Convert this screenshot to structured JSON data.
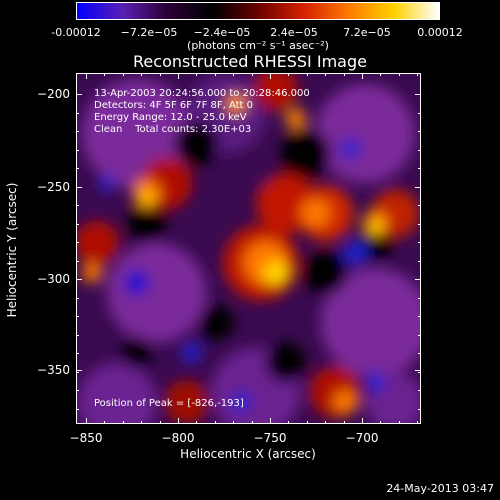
{
  "colorbar": {
    "ticks": [
      "-0.00012",
      "−7.2e−05",
      "−2.4e−05",
      "2.4e−05",
      "7.2e−05",
      "0.00012"
    ],
    "units": "(photons cm⁻² s⁻¹ asec⁻²)",
    "colors": [
      "#0000ff",
      "#5a1fb5",
      "#2a0035",
      "#000000",
      "#6a0000",
      "#d42000",
      "#ff7a00",
      "#ffd000",
      "#ffffff"
    ]
  },
  "title": "Reconstructed RHESSI Image",
  "info": {
    "line1": "13-Apr-2003 20:24:56.000 to 20:28:46.000",
    "line2": "Detectors: 4F 5F 6F 7F 8F, Att 0",
    "line3": "Energy Range: 12.0 - 25.0 keV",
    "line4": "Clean    Total counts: 2.30E+03",
    "peak": "Position of Peak = [-826,-193]"
  },
  "axes": {
    "xlabel": "Heliocentric X (arcsec)",
    "ylabel": "Heliocentric Y (arcsec)",
    "xticks": [
      "−850",
      "−800",
      "−750",
      "−700"
    ],
    "yticks": [
      "−200",
      "−250",
      "−300",
      "−350"
    ],
    "xlim": [
      -855,
      -668
    ],
    "ylim": [
      -380,
      -190
    ]
  },
  "datestamp": "24-May-2013 03:47"
}
